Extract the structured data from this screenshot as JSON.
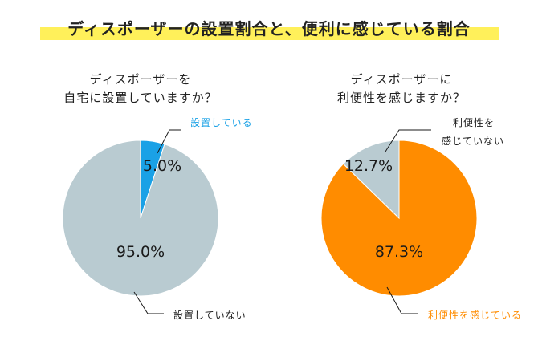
{
  "title": "ディスポーザーの設置割合と、便利に感じている割合",
  "colors": {
    "title_highlight": "#fff05a",
    "gray": "#b9cbd1",
    "blue": "#1aa1e6",
    "orange": "#ff8c00",
    "text": "#1a1a1a"
  },
  "chart_data": [
    {
      "type": "pie",
      "title_lines": [
        "ディスポーザーを",
        "自宅に設置していますか？"
      ],
      "slices": [
        {
          "label": "設置している",
          "value": 5.0,
          "value_label": "5.0%",
          "color": "#1aa1e6"
        },
        {
          "label": "設置していない",
          "value": 95.0,
          "value_label": "95.0%",
          "color": "#b9cbd1"
        }
      ]
    },
    {
      "type": "pie",
      "title_lines": [
        "ディスポーザーに",
        "利便性を感じますか？"
      ],
      "slices": [
        {
          "label": "利便性を感じている",
          "value": 87.3,
          "value_label": "87.3%",
          "color": "#ff8c00"
        },
        {
          "label": "利便性を\n感じていない",
          "value": 12.7,
          "value_label": "12.7%",
          "color": "#b9cbd1"
        }
      ]
    }
  ]
}
